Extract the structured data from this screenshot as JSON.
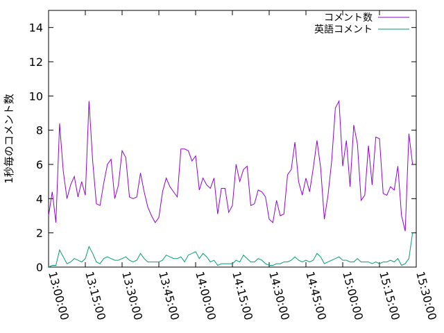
{
  "chart_data": {
    "type": "line",
    "title": "",
    "xlabel": "",
    "ylabel": "1秒毎のコメント数",
    "xlim": [
      "13:00:00",
      "15:30:00"
    ],
    "ylim": [
      0,
      15
    ],
    "x_tick_labels": [
      "13:00:00",
      "13:15:00",
      "13:30:00",
      "13:45:00",
      "14:00:00",
      "14:15:00",
      "14:30:00",
      "14:45:00",
      "15:00:00",
      "15:15:00",
      "15:30:00"
    ],
    "y_ticks": [
      0,
      2,
      4,
      6,
      8,
      10,
      12,
      14
    ],
    "y_tick_labels": [
      "0",
      "2",
      "4",
      "6",
      "8",
      "10",
      "12",
      "14"
    ],
    "grid": false,
    "legend_position": "top-right",
    "series": [
      {
        "name": "コメント数",
        "color": "#9400d3",
        "points": [
          [
            "13:00:00",
            3.0
          ],
          [
            "13:01:30",
            4.4
          ],
          [
            "13:03:00",
            2.6
          ],
          [
            "13:04:30",
            8.4
          ],
          [
            "13:06:00",
            5.6
          ],
          [
            "13:07:30",
            4.0
          ],
          [
            "13:09:00",
            4.8
          ],
          [
            "13:10:30",
            5.3
          ],
          [
            "13:12:00",
            4.1
          ],
          [
            "13:13:30",
            5.0
          ],
          [
            "13:15:00",
            4.2
          ],
          [
            "13:16:30",
            9.7
          ],
          [
            "13:18:00",
            6.2
          ],
          [
            "13:19:30",
            3.7
          ],
          [
            "13:21:00",
            3.6
          ],
          [
            "13:22:30",
            4.9
          ],
          [
            "13:24:00",
            6.0
          ],
          [
            "13:25:30",
            6.3
          ],
          [
            "13:27:00",
            4.0
          ],
          [
            "13:28:30",
            4.8
          ],
          [
            "13:30:00",
            6.8
          ],
          [
            "13:31:30",
            6.4
          ],
          [
            "13:33:00",
            4.1
          ],
          [
            "13:34:30",
            4.0
          ],
          [
            "13:36:00",
            4.1
          ],
          [
            "13:37:30",
            5.5
          ],
          [
            "13:39:00",
            4.4
          ],
          [
            "13:40:30",
            3.5
          ],
          [
            "13:42:00",
            3.0
          ],
          [
            "13:43:30",
            2.6
          ],
          [
            "13:45:00",
            2.9
          ],
          [
            "13:46:30",
            4.4
          ],
          [
            "13:48:00",
            5.2
          ],
          [
            "13:49:30",
            4.7
          ],
          [
            "13:51:00",
            4.4
          ],
          [
            "13:52:30",
            4.1
          ],
          [
            "13:54:00",
            6.9
          ],
          [
            "13:55:30",
            6.9
          ],
          [
            "13:57:00",
            6.8
          ],
          [
            "13:58:30",
            6.2
          ],
          [
            "14:00:00",
            6.5
          ],
          [
            "14:01:30",
            4.5
          ],
          [
            "14:03:00",
            5.2
          ],
          [
            "14:04:30",
            4.8
          ],
          [
            "14:06:00",
            4.6
          ],
          [
            "14:07:30",
            5.2
          ],
          [
            "14:09:00",
            3.1
          ],
          [
            "14:10:30",
            4.6
          ],
          [
            "14:12:00",
            4.6
          ],
          [
            "14:13:30",
            3.2
          ],
          [
            "14:15:00",
            3.6
          ],
          [
            "14:16:30",
            6.0
          ],
          [
            "14:18:00",
            5.0
          ],
          [
            "14:19:30",
            5.7
          ],
          [
            "14:21:00",
            5.9
          ],
          [
            "14:22:30",
            3.6
          ],
          [
            "14:24:00",
            3.7
          ],
          [
            "14:25:30",
            4.5
          ],
          [
            "14:27:00",
            4.4
          ],
          [
            "14:28:30",
            4.1
          ],
          [
            "14:30:00",
            2.8
          ],
          [
            "14:31:30",
            2.6
          ],
          [
            "14:33:00",
            3.9
          ],
          [
            "14:34:30",
            3.0
          ],
          [
            "14:36:00",
            3.1
          ],
          [
            "14:37:30",
            5.4
          ],
          [
            "14:39:00",
            5.7
          ],
          [
            "14:40:30",
            7.3
          ],
          [
            "14:42:00",
            5.0
          ],
          [
            "14:43:30",
            4.2
          ],
          [
            "14:45:00",
            5.2
          ],
          [
            "14:46:30",
            4.4
          ],
          [
            "14:48:00",
            5.8
          ],
          [
            "14:49:30",
            7.4
          ],
          [
            "14:51:00",
            5.8
          ],
          [
            "14:52:30",
            2.8
          ],
          [
            "14:54:00",
            4.2
          ],
          [
            "14:55:30",
            6.2
          ],
          [
            "14:57:00",
            9.3
          ],
          [
            "14:58:30",
            9.7
          ],
          [
            "15:00:00",
            5.9
          ],
          [
            "15:01:30",
            7.4
          ],
          [
            "15:03:00",
            4.7
          ],
          [
            "15:04:30",
            8.3
          ],
          [
            "15:06:00",
            7.2
          ],
          [
            "15:07:30",
            3.9
          ],
          [
            "15:09:00",
            4.2
          ],
          [
            "15:10:30",
            7.1
          ],
          [
            "15:12:00",
            4.8
          ],
          [
            "15:13:30",
            7.6
          ],
          [
            "15:15:00",
            7.5
          ],
          [
            "15:16:30",
            4.3
          ],
          [
            "15:18:00",
            4.2
          ],
          [
            "15:19:30",
            4.7
          ],
          [
            "15:21:00",
            4.5
          ],
          [
            "15:22:30",
            5.9
          ],
          [
            "15:24:00",
            3.0
          ],
          [
            "15:25:30",
            2.1
          ],
          [
            "15:27:00",
            7.8
          ],
          [
            "15:28:30",
            6.0
          ]
        ]
      },
      {
        "name": "英語コメント",
        "color": "#009e73",
        "points": [
          [
            "13:00:00",
            0.0
          ],
          [
            "13:01:30",
            0.1
          ],
          [
            "13:03:00",
            0.1
          ],
          [
            "13:04:30",
            1.0
          ],
          [
            "13:06:00",
            0.6
          ],
          [
            "13:07:30",
            0.2
          ],
          [
            "13:09:00",
            0.3
          ],
          [
            "13:10:30",
            0.5
          ],
          [
            "13:12:00",
            0.4
          ],
          [
            "13:13:30",
            0.3
          ],
          [
            "13:15:00",
            0.5
          ],
          [
            "13:16:30",
            1.2
          ],
          [
            "13:18:00",
            0.8
          ],
          [
            "13:19:30",
            0.3
          ],
          [
            "13:21:00",
            0.2
          ],
          [
            "13:22:30",
            0.5
          ],
          [
            "13:24:00",
            0.6
          ],
          [
            "13:25:30",
            0.5
          ],
          [
            "13:27:00",
            0.4
          ],
          [
            "13:28:30",
            0.4
          ],
          [
            "13:30:00",
            0.5
          ],
          [
            "13:31:30",
            0.6
          ],
          [
            "13:33:00",
            0.4
          ],
          [
            "13:34:30",
            0.3
          ],
          [
            "13:36:00",
            0.4
          ],
          [
            "13:37:30",
            0.8
          ],
          [
            "13:39:00",
            0.5
          ],
          [
            "13:40:30",
            0.3
          ],
          [
            "13:42:00",
            0.3
          ],
          [
            "13:43:30",
            0.3
          ],
          [
            "13:45:00",
            0.3
          ],
          [
            "13:46:30",
            0.4
          ],
          [
            "13:48:00",
            0.7
          ],
          [
            "13:49:30",
            0.6
          ],
          [
            "13:51:00",
            0.5
          ],
          [
            "13:52:30",
            0.5
          ],
          [
            "13:54:00",
            0.6
          ],
          [
            "13:55:30",
            0.3
          ],
          [
            "13:57:00",
            0.7
          ],
          [
            "13:58:30",
            0.8
          ],
          [
            "14:00:00",
            0.9
          ],
          [
            "14:01:30",
            0.5
          ],
          [
            "14:03:00",
            0.8
          ],
          [
            "14:04:30",
            0.6
          ],
          [
            "14:06:00",
            0.3
          ],
          [
            "14:07:30",
            0.4
          ],
          [
            "14:09:00",
            0.1
          ],
          [
            "14:10:30",
            0.2
          ],
          [
            "14:12:00",
            0.2
          ],
          [
            "14:13:30",
            0.2
          ],
          [
            "14:15:00",
            0.2
          ],
          [
            "14:16:30",
            0.4
          ],
          [
            "14:18:00",
            0.3
          ],
          [
            "14:19:30",
            0.7
          ],
          [
            "14:21:00",
            0.5
          ],
          [
            "14:22:30",
            0.3
          ],
          [
            "14:24:00",
            0.3
          ],
          [
            "14:25:30",
            0.5
          ],
          [
            "14:27:00",
            0.4
          ],
          [
            "14:28:30",
            0.2
          ],
          [
            "14:30:00",
            0.1
          ],
          [
            "14:31:30",
            0.1
          ],
          [
            "14:33:00",
            0.2
          ],
          [
            "14:34:30",
            0.2
          ],
          [
            "14:36:00",
            0.3
          ],
          [
            "14:37:30",
            0.3
          ],
          [
            "14:39:00",
            0.4
          ],
          [
            "14:40:30",
            0.6
          ],
          [
            "14:42:00",
            0.4
          ],
          [
            "14:43:30",
            0.3
          ],
          [
            "14:45:00",
            0.4
          ],
          [
            "14:46:30",
            0.3
          ],
          [
            "14:48:00",
            0.4
          ],
          [
            "14:49:30",
            0.8
          ],
          [
            "14:51:00",
            0.6
          ],
          [
            "14:52:30",
            0.2
          ],
          [
            "14:54:00",
            0.3
          ],
          [
            "14:55:30",
            0.4
          ],
          [
            "14:57:00",
            0.5
          ],
          [
            "14:58:30",
            0.6
          ],
          [
            "15:00:00",
            0.4
          ],
          [
            "15:01:30",
            0.4
          ],
          [
            "15:03:00",
            0.3
          ],
          [
            "15:04:30",
            0.3
          ],
          [
            "15:06:00",
            0.5
          ],
          [
            "15:07:30",
            0.3
          ],
          [
            "15:09:00",
            0.3
          ],
          [
            "15:10:30",
            0.3
          ],
          [
            "15:12:00",
            0.2
          ],
          [
            "15:13:30",
            0.3
          ],
          [
            "15:15:00",
            0.2
          ],
          [
            "15:16:30",
            0.3
          ],
          [
            "15:18:00",
            0.3
          ],
          [
            "15:19:30",
            0.4
          ],
          [
            "15:21:00",
            0.3
          ],
          [
            "15:22:30",
            0.5
          ],
          [
            "15:24:00",
            0.1
          ],
          [
            "15:25:30",
            0.2
          ],
          [
            "15:27:00",
            0.5
          ],
          [
            "15:28:30",
            2.0
          ]
        ]
      }
    ]
  }
}
